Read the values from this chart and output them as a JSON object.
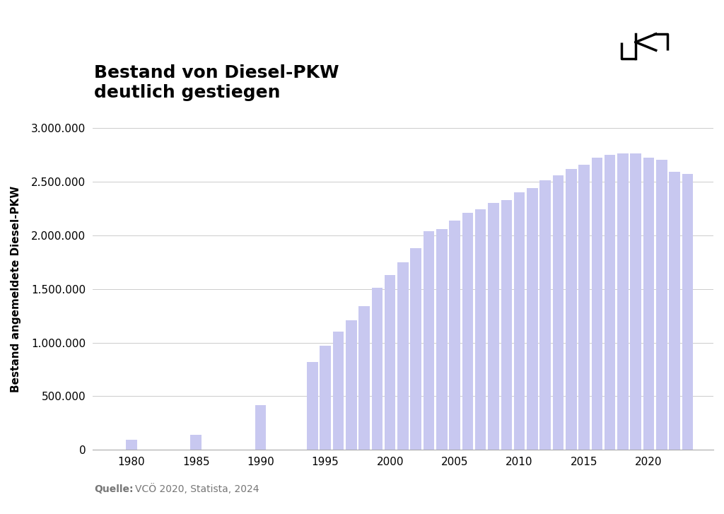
{
  "title_line1": "Bestand von Diesel-PKW",
  "title_line2": "deutlich gestiegen",
  "ylabel": "Bestand angemeldete Diesel-PKW",
  "source_label": "Quelle:",
  "source_text": " VCÖ 2020, Statista, 2024",
  "bar_color": "#c8c8f0",
  "background_color": "#ffffff",
  "ylim": [
    0,
    3000000
  ],
  "yticks": [
    0,
    500000,
    1000000,
    1500000,
    2000000,
    2500000,
    3000000
  ],
  "years": [
    1980,
    1985,
    1990,
    1994,
    1995,
    1996,
    1997,
    1998,
    1999,
    2000,
    2001,
    2002,
    2003,
    2004,
    2005,
    2006,
    2007,
    2008,
    2009,
    2010,
    2011,
    2012,
    2013,
    2014,
    2015,
    2016,
    2017,
    2018,
    2019,
    2020,
    2021,
    2022,
    2023
  ],
  "values": [
    95000,
    140000,
    420000,
    820000,
    970000,
    1100000,
    1205000,
    1340000,
    1510000,
    1630000,
    1750000,
    1880000,
    2040000,
    2060000,
    2140000,
    2210000,
    2240000,
    2300000,
    2330000,
    2400000,
    2440000,
    2510000,
    2560000,
    2620000,
    2660000,
    2720000,
    2750000,
    2760000,
    2760000,
    2720000,
    2700000,
    2590000,
    2570000
  ],
  "xtick_positions": [
    1980,
    1985,
    1990,
    1995,
    2000,
    2005,
    2010,
    2015,
    2020
  ],
  "title_fontsize": 18,
  "axis_fontsize": 11,
  "tick_fontsize": 11,
  "source_fontsize": 10
}
